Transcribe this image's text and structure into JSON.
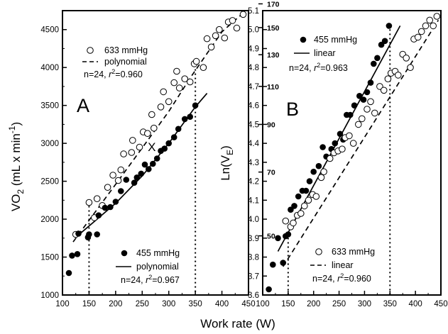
{
  "chart_data": [
    {
      "type": "scatter",
      "panel_label": "A",
      "xlabel": "Work rate (W)",
      "ylabel": "VO2 (mL x min-1)",
      "ylabel_main": "VO",
      "ylabel_sub": "2",
      "ylabel_rest": " (mL x min",
      "ylabel_sup": "-1",
      "ylabel_close": ")",
      "xlim": [
        100,
        450
      ],
      "ylim": [
        1000,
        4750
      ],
      "xticks": [
        100,
        150,
        200,
        250,
        300,
        350,
        400,
        450
      ],
      "yticks": [
        1000,
        1500,
        2000,
        2500,
        3000,
        3500,
        4000,
        4500
      ],
      "vlines": [
        150,
        350
      ],
      "annotation": "X",
      "annotation_at": [
        268,
        2900
      ],
      "legend": [
        {
          "marker": "open-circle",
          "label": "633 mmHg"
        },
        {
          "line": "dashed",
          "label": "polynomial"
        },
        {
          "text": "n=24, r2=0.960",
          "n": "n=24, ",
          "r": "r",
          "sup": "2",
          "val": "=0.960"
        },
        {
          "marker": "filled-circle",
          "label": "455 mmHg"
        },
        {
          "line": "solid",
          "label": "polynomial"
        },
        {
          "text": "n=24, r2=0.967",
          "n": "n=24, ",
          "r": "r",
          "sup": "2",
          "val": "=0.967"
        }
      ],
      "series": [
        {
          "name": "633 mmHg",
          "marker": "open",
          "fit": "dashed",
          "fit_curve": [
            [
              120,
              1700
            ],
            [
              200,
              2460
            ],
            [
              300,
              3420
            ],
            [
              340,
              3860
            ],
            [
              400,
              4470
            ],
            [
              445,
              4750
            ]
          ],
          "points": [
            [
              125,
              1800
            ],
            [
              150,
              2220
            ],
            [
              160,
              2020
            ],
            [
              165,
              2270
            ],
            [
              175,
              2180
            ],
            [
              185,
              2420
            ],
            [
              195,
              2580
            ],
            [
              205,
              2510
            ],
            [
              210,
              2650
            ],
            [
              215,
              2860
            ],
            [
              230,
              2880
            ],
            [
              232,
              3040
            ],
            [
              245,
              2950
            ],
            [
              252,
              3150
            ],
            [
              260,
              3130
            ],
            [
              268,
              3380
            ],
            [
              272,
              3200
            ],
            [
              285,
              3480
            ],
            [
              290,
              3680
            ],
            [
              300,
              3550
            ],
            [
              310,
              3800
            ],
            [
              315,
              3950
            ],
            [
              320,
              3730
            ],
            [
              330,
              3850
            ],
            [
              340,
              3810
            ],
            [
              348,
              4050
            ],
            [
              352,
              4080
            ],
            [
              365,
              4000
            ],
            [
              372,
              4380
            ],
            [
              380,
              4270
            ],
            [
              388,
              4420
            ],
            [
              395,
              4500
            ],
            [
              405,
              4390
            ],
            [
              412,
              4600
            ],
            [
              420,
              4620
            ],
            [
              428,
              4520
            ],
            [
              440,
              4700
            ]
          ]
        },
        {
          "name": "455 mmHg",
          "marker": "filled",
          "fit": "solid",
          "fit_curve": [
            [
              125,
              1760
            ],
            [
              200,
              2210
            ],
            [
              250,
              2570
            ],
            [
              300,
              3000
            ],
            [
              350,
              3480
            ],
            [
              372,
              3660
            ]
          ],
          "points": [
            [
              112,
              1290
            ],
            [
              118,
              1520
            ],
            [
              128,
              1540
            ],
            [
              130,
              1810
            ],
            [
              148,
              1760
            ],
            [
              150,
              1800
            ],
            [
              165,
              1800
            ],
            [
              168,
              2050
            ],
            [
              180,
              2150
            ],
            [
              190,
              2160
            ],
            [
              200,
              2230
            ],
            [
              210,
              2370
            ],
            [
              220,
              2520
            ],
            [
              235,
              2480
            ],
            [
              240,
              2550
            ],
            [
              248,
              2600
            ],
            [
              255,
              2720
            ],
            [
              262,
              2660
            ],
            [
              270,
              2730
            ],
            [
              278,
              2800
            ],
            [
              285,
              2900
            ],
            [
              292,
              2930
            ],
            [
              300,
              3000
            ],
            [
              310,
              3080
            ],
            [
              318,
              3190
            ],
            [
              330,
              3320
            ],
            [
              340,
              3350
            ],
            [
              350,
              3500
            ]
          ]
        }
      ]
    },
    {
      "type": "scatter",
      "panel_label": "B",
      "xlabel": "Work rate (W)",
      "ylabel": "Ln(VE)",
      "ylabel_main": "Ln(V",
      "ylabel_sub": "E",
      "ylabel_close": ")",
      "xlim": [
        100,
        450
      ],
      "ylim": [
        3.6,
        5.1
      ],
      "xticks": [
        100,
        150,
        200,
        250,
        300,
        350,
        400,
        450
      ],
      "yticks": [
        "3.6",
        "3.7",
        "3.8",
        "3.9",
        "4.0",
        "4.1",
        "4.2",
        "4.3",
        "4.4",
        "4.5",
        "4.6",
        "4.7",
        "4.8",
        "4.9",
        "5.0",
        "5.1"
      ],
      "right_axis_ticks": [
        "50",
        "70",
        "90",
        "110",
        "130",
        "150",
        "170"
      ],
      "vlines": [
        150,
        350
      ],
      "legend": [
        {
          "marker": "filled-circle",
          "label": "455 mmHg"
        },
        {
          "line": "solid",
          "label": "linear"
        },
        {
          "text": "n=24, r2=0.963",
          "n": "n=24, ",
          "r": "r",
          "sup": "2",
          "val": "=0.963"
        },
        {
          "marker": "open-circle",
          "label": "633 mmHg"
        },
        {
          "line": "dashed",
          "label": "linear"
        },
        {
          "text": "n=24, r2=0.960",
          "n": "n=24, ",
          "r": "r",
          "sup": "2",
          "val": "=0.960"
        }
      ],
      "series": [
        {
          "name": "455 mmHg",
          "marker": "filled",
          "fit": "solid",
          "fit_curve": [
            [
              130,
              3.83
            ],
            [
              370,
              5.02
            ]
          ],
          "points": [
            [
              112,
              3.63
            ],
            [
              120,
              3.76
            ],
            [
              130,
              3.9
            ],
            [
              140,
              3.77
            ],
            [
              145,
              3.91
            ],
            [
              150,
              3.92
            ],
            [
              155,
              4.05
            ],
            [
              162,
              4.07
            ],
            [
              170,
              4.12
            ],
            [
              178,
              4.15
            ],
            [
              185,
              4.15
            ],
            [
              192,
              4.2
            ],
            [
              200,
              4.25
            ],
            [
              210,
              4.28
            ],
            [
              218,
              4.38
            ],
            [
              225,
              4.33
            ],
            [
              235,
              4.37
            ],
            [
              242,
              4.4
            ],
            [
              252,
              4.45
            ],
            [
              258,
              4.42
            ],
            [
              265,
              4.55
            ],
            [
              272,
              4.55
            ],
            [
              280,
              4.6
            ],
            [
              290,
              4.65
            ],
            [
              298,
              4.63
            ],
            [
              305,
              4.67
            ],
            [
              312,
              4.72
            ],
            [
              318,
              4.82
            ],
            [
              325,
              4.85
            ],
            [
              333,
              4.92
            ],
            [
              340,
              4.94
            ],
            [
              348,
              5.02
            ]
          ]
        },
        {
          "name": "633 mmHg",
          "marker": "open",
          "fit": "dashed",
          "fit_curve": [
            [
              140,
              3.75
            ],
            [
              445,
              5.05
            ]
          ],
          "points": [
            [
              145,
              3.99
            ],
            [
              155,
              3.96
            ],
            [
              160,
              3.98
            ],
            [
              168,
              4.02
            ],
            [
              175,
              4.03
            ],
            [
              182,
              4.07
            ],
            [
              190,
              4.1
            ],
            [
              198,
              4.13
            ],
            [
              205,
              4.12
            ],
            [
              215,
              4.22
            ],
            [
              220,
              4.25
            ],
            [
              232,
              4.32
            ],
            [
              240,
              4.35
            ],
            [
              248,
              4.36
            ],
            [
              256,
              4.37
            ],
            [
              262,
              4.43
            ],
            [
              270,
              4.44
            ],
            [
              278,
              4.4
            ],
            [
              288,
              4.5
            ],
            [
              295,
              4.53
            ],
            [
              305,
              4.58
            ],
            [
              312,
              4.62
            ],
            [
              320,
              4.56
            ],
            [
              330,
              4.7
            ],
            [
              338,
              4.68
            ],
            [
              346,
              4.74
            ],
            [
              352,
              4.77
            ],
            [
              360,
              4.78
            ],
            [
              366,
              4.76
            ],
            [
              375,
              4.87
            ],
            [
              382,
              4.85
            ],
            [
              390,
              4.8
            ],
            [
              397,
              4.95
            ],
            [
              405,
              4.96
            ],
            [
              412,
              4.99
            ],
            [
              420,
              5.02
            ],
            [
              428,
              5.05
            ],
            [
              435,
              5.02
            ],
            [
              442,
              5.07
            ]
          ]
        }
      ]
    }
  ]
}
